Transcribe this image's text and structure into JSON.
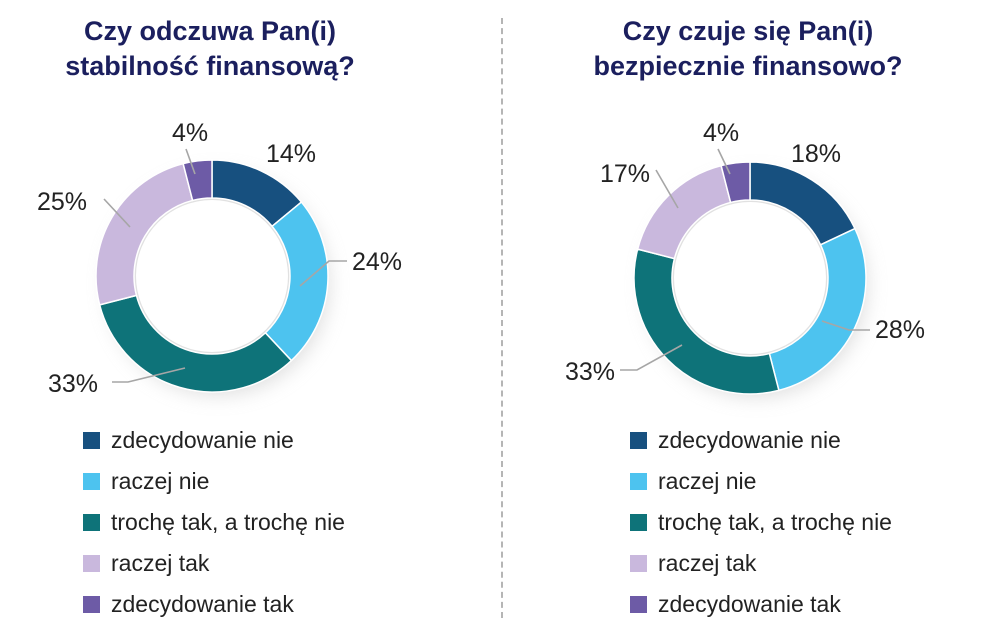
{
  "legend": {
    "labels": [
      "zdecydowanie nie",
      "raczej nie",
      "trochę tak, a trochę nie",
      "raczej tak",
      "zdecydowanie tak"
    ],
    "colors": [
      "#17507f",
      "#4dc3ef",
      "#0e7379",
      "#c9b8dd",
      "#6d5ba6"
    ]
  },
  "chart_data": [
    {
      "type": "pie",
      "title": "Czy odczuwa Pan(i) stabilność finansową?",
      "title_lines": [
        "Czy odczuwa Pan(i)",
        "stabilność finansową?"
      ],
      "categories": [
        "zdecydowanie nie",
        "raczej nie",
        "trochę tak, a trochę nie",
        "raczej tak",
        "zdecydowanie tak"
      ],
      "values": [
        14,
        24,
        33,
        25,
        4
      ],
      "labels": [
        "14%",
        "24%",
        "33%",
        "25%",
        "4%"
      ],
      "legend_position": "bottom"
    },
    {
      "type": "pie",
      "title": "Czy czuje się Pan(i) bezpiecznie finansowo?",
      "title_lines": [
        "Czy czuje się Pan(i)",
        "bezpiecznie finansowo?"
      ],
      "categories": [
        "zdecydowanie nie",
        "raczej nie",
        "trochę tak, a trochę nie",
        "raczej tak",
        "zdecydowanie tak"
      ],
      "values": [
        18,
        28,
        33,
        17,
        4
      ],
      "labels": [
        "18%",
        "28%",
        "33%",
        "17%",
        "4%"
      ],
      "legend_position": "bottom"
    }
  ]
}
